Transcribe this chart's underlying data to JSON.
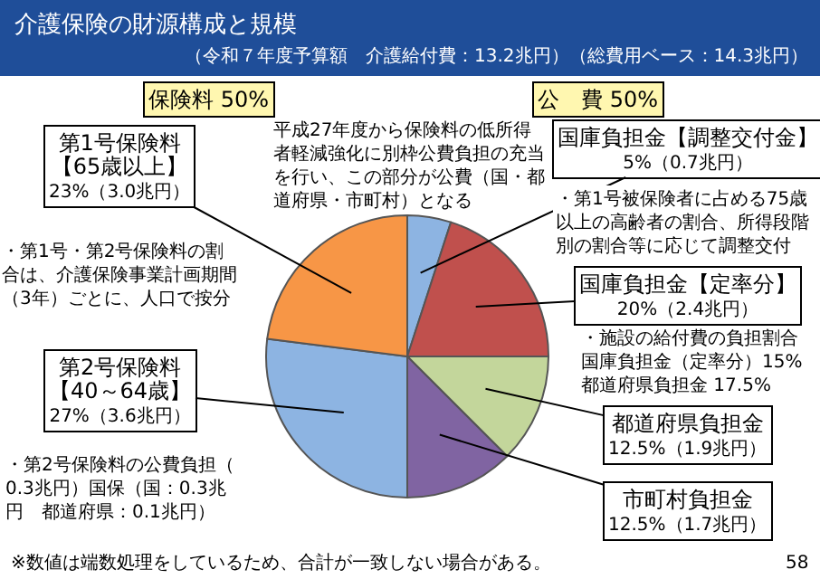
{
  "chart_data": {
    "type": "pie",
    "title": "介護保険の財源構成と規模",
    "subtitle": "（令和７年度予算額　介護給付費：13.2兆円）（総費用ベース：14.3兆円）",
    "categories": [
      "国庫負担金【調整交付金】",
      "国庫負担金【定率分】",
      "都道府県負担金",
      "市町村負担金",
      "第2号保険料【40～64歳】",
      "第1号保険料【65歳以上】"
    ],
    "values": [
      5,
      20,
      12.5,
      12.5,
      27,
      23
    ],
    "value_labels": [
      "5%（0.7兆円）",
      "20%（2.4兆円）",
      "12.5%（1.9兆円）",
      "12.5%（1.7兆円）",
      "27%（3.6兆円）",
      "23%（3.0兆円）"
    ],
    "colors": [
      "#8db4e2",
      "#c0504d",
      "#c3d69b",
      "#8064a2",
      "#8db4e2",
      "#f79646"
    ],
    "annotations": [
      "保険料 50%",
      "公　費 50%",
      "平成27年度から保険料の低所得者軽減強化に別枠公費負担の充当を行い、この部分が公費（国・都道府県・市町村）となる",
      "・第1号被保険者に占める75歳以上の高齢者の割合、所得段階別の割合等に応じて調整交付",
      "・施設の給付費の負担割合国庫負担金（定率分）15%都道府県負担金 17.5%",
      "・第1号・第2号保険料の割合は、介護保険事業計画期間（3年）ごとに、人口で按分",
      "・第2号保険料の公費負担（0.3兆円）国保（国：0.3兆円　都道府県：0.1兆円）",
      "※数値は端数処理をしているため、合計が一致しない場合がある。",
      "58"
    ]
  }
}
